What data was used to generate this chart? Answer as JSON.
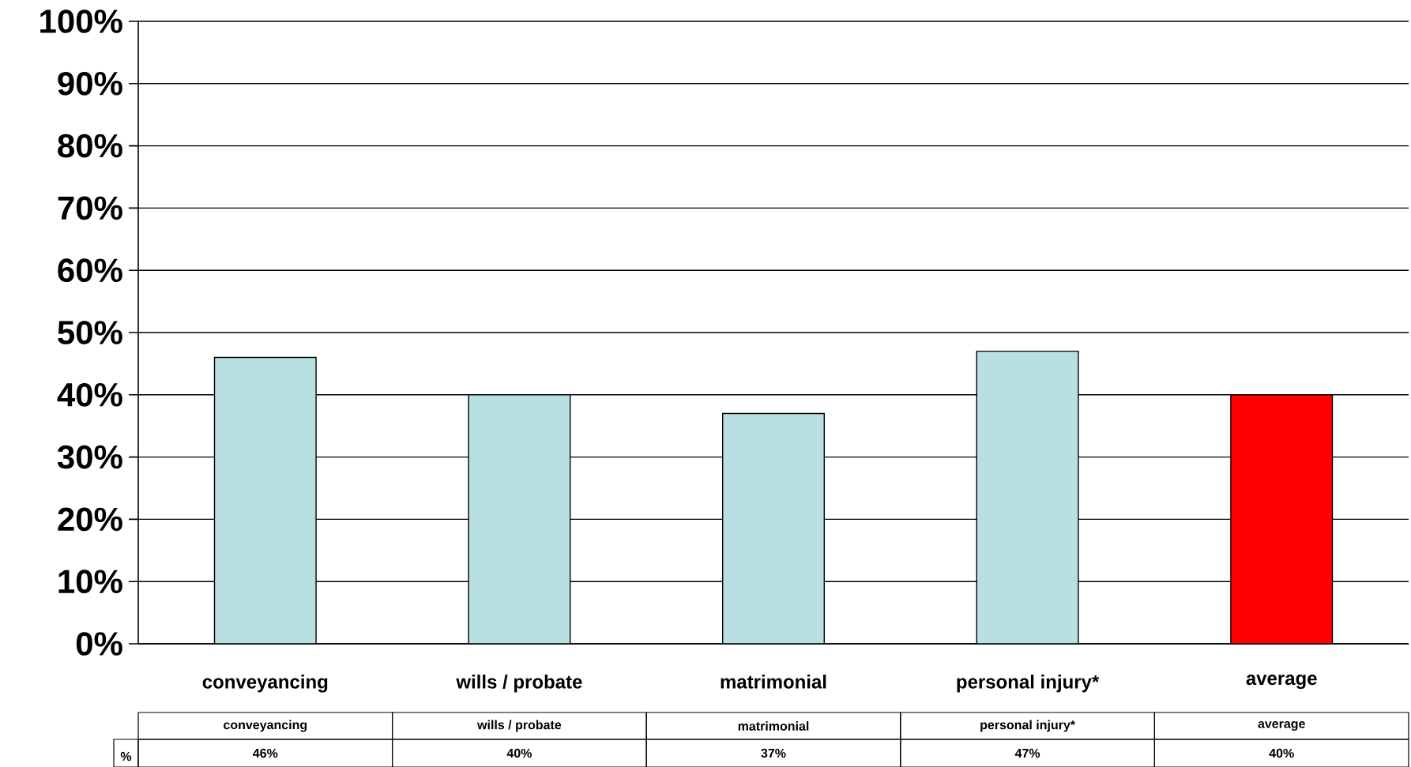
{
  "chart_data": {
    "type": "bar",
    "categories": [
      "conveyancing",
      "wills / probate",
      "matrimonial",
      "personal injury*",
      "average"
    ],
    "series": [
      {
        "name": "%",
        "values": [
          46,
          40,
          37,
          47,
          40
        ],
        "colors": [
          "#b8e0e3",
          "#b8e0e3",
          "#b8e0e3",
          "#b8e0e3",
          "#ff0000"
        ],
        "value_labels": [
          "46%",
          "40%",
          "37%",
          "47%",
          "40%"
        ]
      }
    ],
    "ylim": [
      0,
      100
    ],
    "yticks": [
      {
        "value": 0,
        "label": "0%"
      },
      {
        "value": 10,
        "label": "10%"
      },
      {
        "value": 20,
        "label": "20%"
      },
      {
        "value": 30,
        "label": "30%"
      },
      {
        "value": 40,
        "label": "40%"
      },
      {
        "value": 50,
        "label": "50%"
      },
      {
        "value": 60,
        "label": "60%"
      },
      {
        "value": 70,
        "label": "70%"
      },
      {
        "value": 80,
        "label": "80%"
      },
      {
        "value": 90,
        "label": "90%"
      },
      {
        "value": 100,
        "label": "100%"
      }
    ],
    "grid": "y",
    "legend": false
  }
}
